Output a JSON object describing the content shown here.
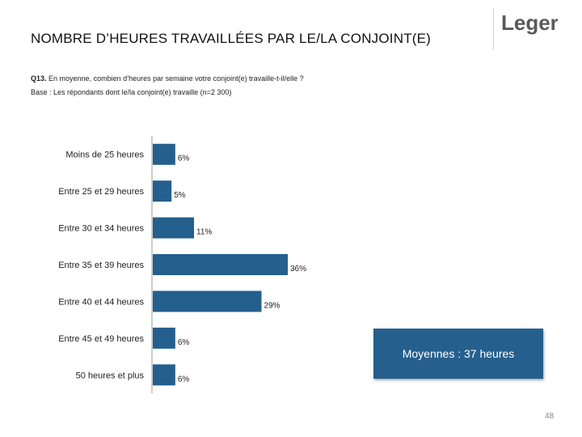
{
  "header": {
    "title": "NOMBRE D’HEURES TRAVAILLÉES PAR LE/LA CONJOINT(E)",
    "logo_text": "Leger"
  },
  "question": {
    "code": "Q13.",
    "text": "En moyenne, combien d’heures par semaine votre conjoint(e) travaille-t-il/elle ?",
    "base": "Base : Les répondants dont le/la conjoint(e) travaille (n=2 300)"
  },
  "summary": {
    "average_label": "Moyennes : 37 heures"
  },
  "page_number": "48",
  "colors": {
    "bar": "#255f8e",
    "logo_red": "#d9232e"
  },
  "chart_data": {
    "type": "bar",
    "orientation": "horizontal",
    "categories": [
      "Moins de 25 heures",
      "Entre 25 et 29 heures",
      "Entre 30 et 34 heures",
      "Entre 35 et 39 heures",
      "Entre 40 et 44 heures",
      "Entre 45 et 49 heures",
      "50 heures et plus"
    ],
    "values": [
      6,
      5,
      11,
      36,
      29,
      6,
      6
    ],
    "value_labels": [
      "6%",
      "5%",
      "11%",
      "36%",
      "29%",
      "6%",
      "6%"
    ],
    "unit": "%",
    "xlim": [
      0,
      36
    ],
    "grid": false
  }
}
